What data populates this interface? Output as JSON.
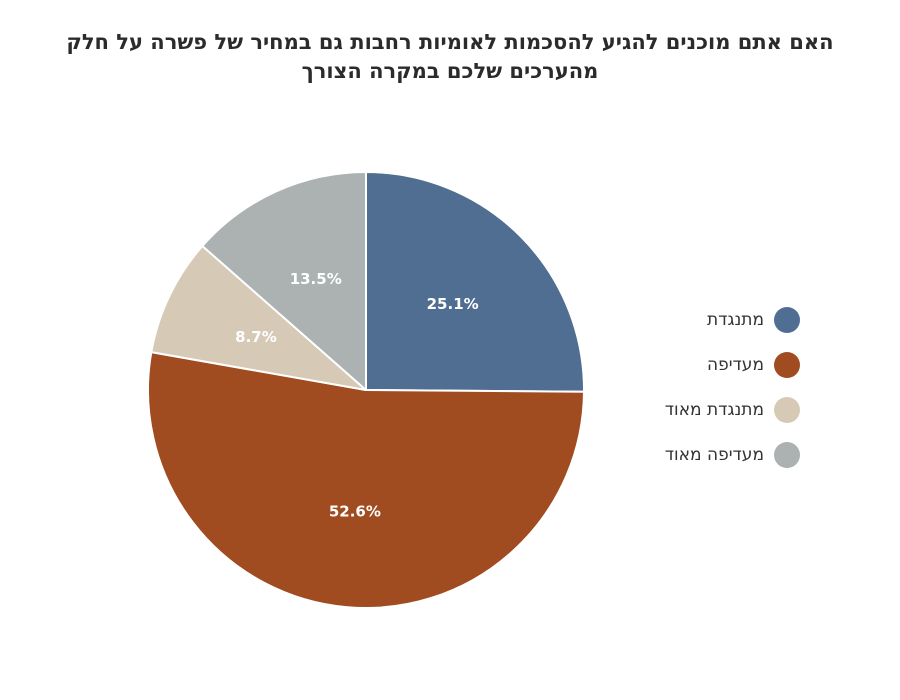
{
  "chart_data": {
    "type": "pie",
    "title_lines": [
      "האם אתם מוכנים להגיע להסכמות לאומיות רחבות גם במחיר של פשרה על חלק",
      "מהערכים שלכם במקרה הצורך"
    ],
    "slices": [
      {
        "label": "מתנגדת",
        "value": 25.1,
        "display": "25.1%",
        "color": "#4f6e91"
      },
      {
        "label": "מעדיפה",
        "value": 52.6,
        "display": "52.6%",
        "color": "#a04b20"
      },
      {
        "label": "מתנגדת מאוד",
        "value": 8.7,
        "display": "8.7%",
        "color": "#d6cab6"
      },
      {
        "label": "מעדיפה מאוד",
        "value": 13.5,
        "display": "13.5%",
        "color": "#abb2b1"
      }
    ],
    "start_angle": "12 o'clock",
    "direction": "clockwise",
    "legend_position": "right",
    "label_color": "#ffffff",
    "border_color": "#ffffff"
  }
}
